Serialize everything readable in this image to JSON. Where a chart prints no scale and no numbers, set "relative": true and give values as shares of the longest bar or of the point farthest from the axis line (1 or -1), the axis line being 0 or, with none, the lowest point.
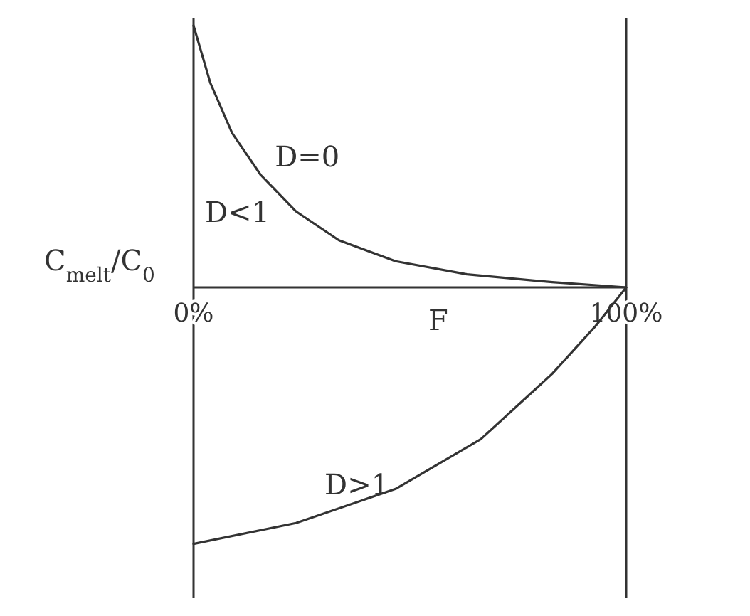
{
  "chart_data": {
    "type": "line",
    "relative": true,
    "xlabel": "F",
    "ylabel": "C$_{melt}$/C$_{0}$",
    "xlim": [
      0,
      100
    ],
    "xticks": [
      {
        "value": 0,
        "label": "0%"
      },
      {
        "value": 100,
        "label": "100%"
      }
    ],
    "annotations": [
      "D<1"
    ],
    "series": [
      {
        "name": "D=0",
        "color": "#333333",
        "x": [
          0,
          3.9,
          8.9,
          15.5,
          23.7,
          33.6,
          46.7,
          63.2,
          82.9,
          100
        ],
        "values": [
          1,
          0.78,
          0.59,
          0.43,
          0.29,
          0.18,
          0.1,
          0.05,
          0.02,
          0
        ]
      },
      {
        "name": "D>1",
        "color": "#333333",
        "x": [
          0,
          23.7,
          46.7,
          66.4,
          82.9,
          92.8,
          100
        ],
        "values": [
          -0.98,
          -0.9,
          -0.77,
          -0.58,
          -0.33,
          -0.15,
          0
        ]
      }
    ]
  }
}
